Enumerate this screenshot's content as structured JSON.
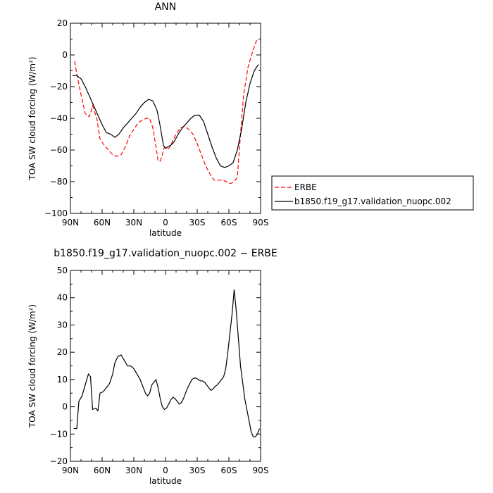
{
  "chart_data": [
    {
      "type": "line",
      "title": "ANN",
      "xlabel": "latitude",
      "ylabel": "TOA SW cloud forcing (W/m²)",
      "xlim": [
        90,
        -90
      ],
      "ylim": [
        -100,
        20
      ],
      "xticks": [
        90,
        60,
        30,
        0,
        -30,
        -60,
        -90
      ],
      "xtick_labels": [
        "90N",
        "60N",
        "30N",
        "0",
        "30S",
        "60S",
        "90S"
      ],
      "yticks": [
        -100,
        -80,
        -60,
        -40,
        -20,
        0,
        20
      ],
      "ytick_labels": [
        "−100",
        "−80",
        "−60",
        "−40",
        "−20",
        "0",
        "20"
      ],
      "legend": "right",
      "series": [
        {
          "name": "ERBE",
          "color": "#ff0000",
          "style": "dashed",
          "x": [
            86,
            84,
            80,
            76,
            72,
            69,
            65,
            62,
            58,
            54,
            50,
            46,
            42,
            38,
            34,
            30,
            26,
            22,
            18,
            15,
            12,
            9,
            7,
            5,
            3,
            1,
            -1,
            -3,
            -5,
            -7,
            -10,
            -14,
            -18,
            -22,
            -26,
            -30,
            -34,
            -38,
            -42,
            -46,
            -50,
            -54,
            -58,
            -60,
            -62,
            -65,
            -68,
            -71,
            -74,
            -78,
            -82,
            -86,
            -88
          ],
          "y": [
            -4,
            -12,
            -25,
            -37,
            -39,
            -32,
            -40,
            -53,
            -57,
            -60,
            -63,
            -64,
            -63,
            -58,
            -51,
            -47,
            -43,
            -41,
            -40,
            -40,
            -46,
            -58,
            -67,
            -67,
            -63,
            -58,
            -59,
            -59,
            -57,
            -54,
            -50,
            -46,
            -45,
            -47,
            -50,
            -56,
            -63,
            -70,
            -75,
            -79,
            -79,
            -79,
            -80,
            -81,
            -81,
            -80,
            -77,
            -50,
            -25,
            -8,
            1,
            9,
            9
          ]
        },
        {
          "name": "b1850.f19_g17.validation_nuopc.002",
          "color": "#000000",
          "style": "solid",
          "x": [
            88,
            84,
            80,
            76,
            72,
            68,
            64,
            60,
            56,
            52,
            48,
            44,
            40,
            36,
            32,
            28,
            24,
            20,
            16,
            12,
            8,
            5,
            2,
            0,
            -2,
            -5,
            -8,
            -12,
            -16,
            -20,
            -24,
            -28,
            -32,
            -36,
            -40,
            -44,
            -48,
            -52,
            -56,
            -60,
            -64,
            -68,
            -72,
            -76,
            -80,
            -84,
            -88
          ],
          "y": [
            -13,
            -13,
            -15,
            -20,
            -26,
            -32,
            -38,
            -44,
            -49,
            -50,
            -52,
            -50,
            -46,
            -43,
            -40,
            -37,
            -33,
            -30,
            -28,
            -29,
            -35,
            -45,
            -57,
            -59,
            -58,
            -57,
            -55,
            -50,
            -46,
            -43,
            -40,
            -38,
            -38,
            -42,
            -50,
            -58,
            -65,
            -70,
            -71,
            -70,
            -68,
            -60,
            -47,
            -30,
            -18,
            -10,
            -6
          ]
        }
      ]
    },
    {
      "type": "line",
      "title": "b1850.f19_g17.validation_nuopc.002 − ERBE",
      "xlabel": "latitude",
      "ylabel": "TOA SW cloud forcing (W/m²)",
      "xlim": [
        90,
        -90
      ],
      "ylim": [
        -20,
        50
      ],
      "xticks": [
        90,
        60,
        30,
        0,
        -30,
        -60,
        -90
      ],
      "xtick_labels": [
        "90N",
        "60N",
        "30N",
        "0",
        "30S",
        "60S",
        "90S"
      ],
      "yticks": [
        -20,
        -10,
        0,
        10,
        20,
        30,
        40,
        50
      ],
      "ytick_labels": [
        "−20",
        "−10",
        "0",
        "10",
        "20",
        "30",
        "40",
        "50"
      ],
      "series": [
        {
          "color": "#000000",
          "style": "solid",
          "x": [
            87,
            84,
            82,
            79,
            76,
            73,
            71,
            69,
            66,
            64,
            62,
            59,
            56,
            53,
            50,
            48,
            45,
            42,
            39,
            36,
            33,
            30,
            27,
            24,
            21,
            19,
            17,
            15,
            13,
            11,
            9,
            7,
            5,
            3,
            1,
            -1,
            -3,
            -5,
            -7,
            -9,
            -11,
            -13,
            -15,
            -17,
            -19,
            -21,
            -23,
            -25,
            -27,
            -29,
            -31,
            -33,
            -35,
            -37,
            -39,
            -41,
            -43,
            -45,
            -47,
            -49,
            -51,
            -53,
            -55,
            -57,
            -59,
            -61,
            -63,
            -65,
            -67,
            -69,
            -71,
            -73,
            -75,
            -77,
            -79,
            -81,
            -83,
            -85,
            -87,
            -89
          ],
          "y": [
            -8,
            -8,
            2,
            4,
            8,
            12,
            11,
            -1,
            -0.5,
            -1.5,
            5,
            5.5,
            7,
            8.5,
            12,
            16,
            18.5,
            19,
            17,
            15,
            15,
            14,
            12,
            10,
            7,
            5,
            4,
            5,
            8,
            9,
            10,
            7,
            3,
            0,
            -1,
            -0.5,
            1,
            2.5,
            3.5,
            3,
            2,
            1,
            1.5,
            3,
            5,
            7,
            8.5,
            10,
            10.5,
            10.5,
            10,
            9.5,
            9.5,
            9,
            8,
            7,
            6,
            6.5,
            7.5,
            8,
            9,
            10,
            11,
            14,
            20,
            27,
            34,
            43,
            35,
            25,
            15,
            9,
            3,
            -1,
            -5,
            -9,
            -11,
            -11,
            -10,
            -8
          ]
        }
      ]
    }
  ]
}
